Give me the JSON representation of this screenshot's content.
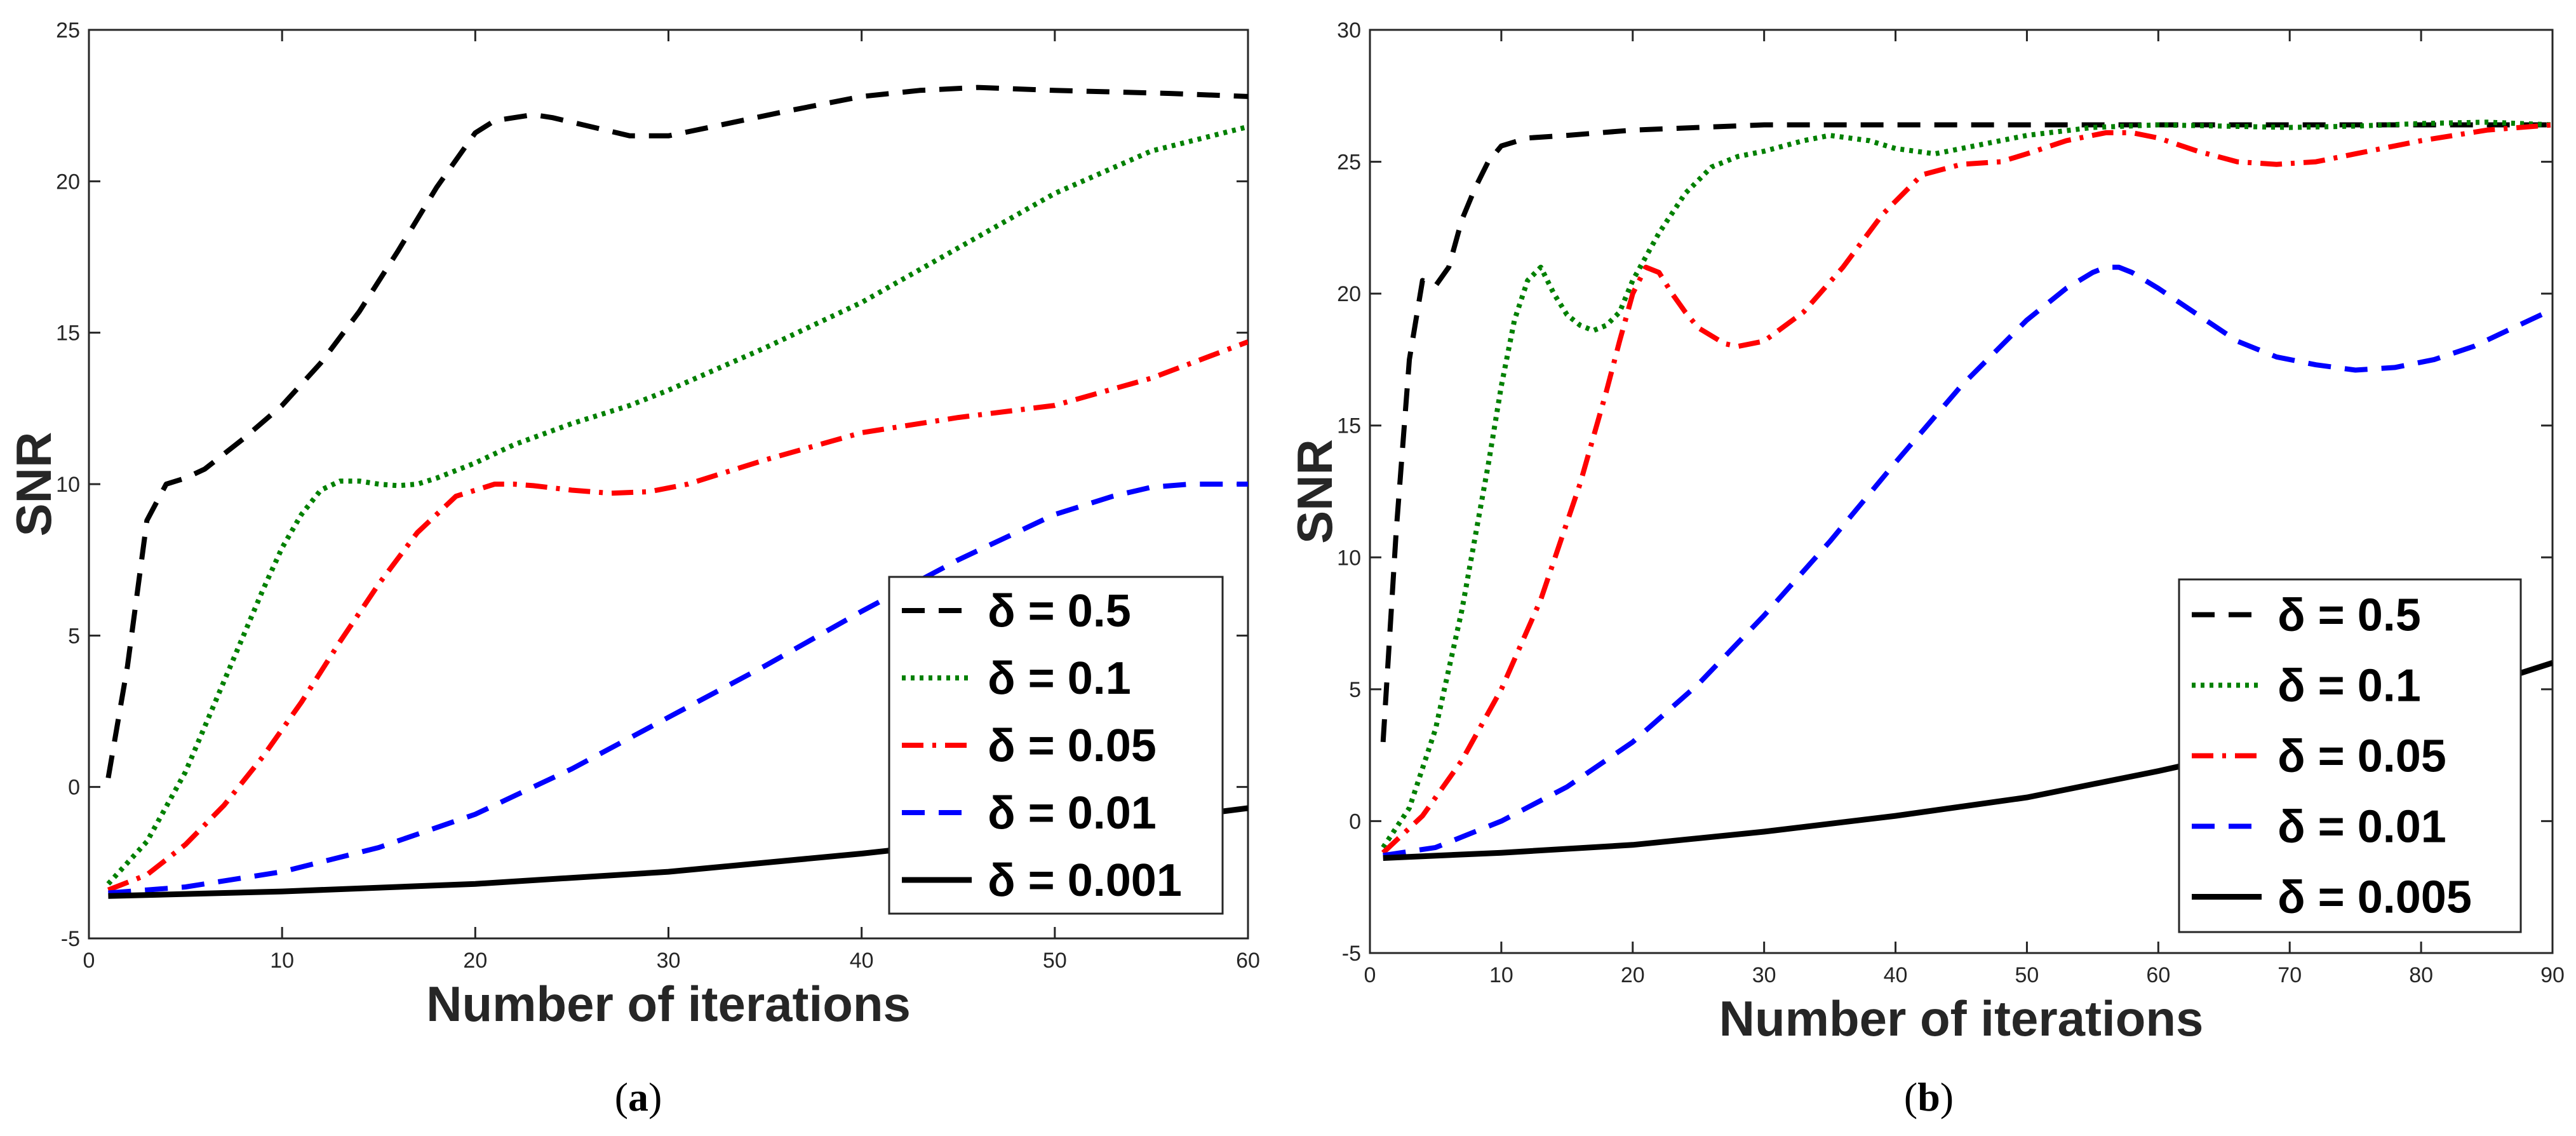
{
  "figure": {
    "captions": [
      {
        "open": "(",
        "label": "a",
        "close": ")"
      },
      {
        "open": "(",
        "label": "b",
        "close": ")"
      }
    ]
  },
  "chart_data": [
    {
      "type": "line",
      "panel": "a",
      "title": "",
      "xlabel": "Number of iterations",
      "ylabel": "SNR",
      "xlim": [
        0,
        60
      ],
      "ylim": [
        -5,
        25
      ],
      "xticks": [
        "0",
        "10",
        "20",
        "30",
        "40",
        "50",
        "60"
      ],
      "yticks": [
        "-5",
        "0",
        "5",
        "10",
        "15",
        "20",
        "25"
      ],
      "grid": false,
      "legend_position": "bottom-right",
      "series": [
        {
          "name": "δ = 0.5",
          "color": "#000000",
          "style": "dashed",
          "x": [
            1,
            2,
            3,
            4,
            5,
            6,
            8,
            10,
            12,
            14,
            16,
            18,
            20,
            21,
            22,
            23,
            24,
            26,
            28,
            30,
            33,
            36,
            40,
            43,
            46,
            50,
            53,
            56,
            60
          ],
          "y": [
            0.3,
            4.0,
            8.8,
            10.0,
            10.2,
            10.5,
            11.5,
            12.6,
            14.0,
            15.7,
            17.7,
            19.8,
            21.6,
            22.0,
            22.1,
            22.2,
            22.1,
            21.8,
            21.5,
            21.5,
            21.9,
            22.3,
            22.8,
            23.0,
            23.1,
            23.0,
            22.95,
            22.9,
            22.8
          ]
        },
        {
          "name": "δ = 0.1",
          "color": "#008000",
          "style": "dotted",
          "x": [
            1,
            3,
            5,
            7,
            9,
            10,
            11,
            12,
            13,
            14,
            15,
            16,
            17,
            18,
            20,
            22,
            25,
            28,
            30,
            35,
            40,
            45,
            50,
            55,
            60
          ],
          "y": [
            -3.2,
            -1.8,
            0.5,
            3.5,
            6.5,
            7.9,
            9.0,
            9.8,
            10.1,
            10.1,
            10.0,
            9.95,
            10.0,
            10.2,
            10.7,
            11.3,
            12.0,
            12.6,
            13.1,
            14.5,
            16.0,
            17.8,
            19.6,
            21.0,
            21.8
          ]
        },
        {
          "name": "δ = 0.05",
          "color": "#ff0000",
          "style": "dashdot",
          "x": [
            1,
            3,
            5,
            7,
            9,
            11,
            13,
            15,
            17,
            19,
            21,
            22,
            23,
            25,
            27,
            29,
            31,
            35,
            40,
            45,
            50,
            55,
            60
          ],
          "y": [
            -3.4,
            -2.9,
            -1.9,
            -0.6,
            1.0,
            2.8,
            4.8,
            6.7,
            8.4,
            9.6,
            10.0,
            10.0,
            9.95,
            9.8,
            9.7,
            9.75,
            10.0,
            10.8,
            11.7,
            12.2,
            12.6,
            13.5,
            14.7
          ]
        },
        {
          "name": "δ = 0.01",
          "color": "#0000ff",
          "style": "dashed",
          "x": [
            1,
            5,
            10,
            15,
            20,
            25,
            30,
            35,
            40,
            45,
            50,
            53,
            55,
            57,
            58,
            59,
            60
          ],
          "y": [
            -3.5,
            -3.3,
            -2.8,
            -2.0,
            -0.9,
            0.6,
            2.3,
            4.0,
            5.8,
            7.5,
            9.0,
            9.6,
            9.9,
            10.0,
            10.0,
            10.0,
            10.0
          ]
        },
        {
          "name": "δ = 0.001",
          "color": "#000000",
          "style": "solid",
          "x": [
            1,
            10,
            20,
            30,
            40,
            50,
            60
          ],
          "y": [
            -3.6,
            -3.45,
            -3.2,
            -2.8,
            -2.2,
            -1.5,
            -0.7
          ]
        }
      ]
    },
    {
      "type": "line",
      "panel": "b",
      "title": "",
      "xlabel": "Number of iterations",
      "ylabel": "SNR",
      "xlim": [
        0,
        90
      ],
      "ylim": [
        -5,
        30
      ],
      "xticks": [
        "0",
        "10",
        "20",
        "30",
        "40",
        "50",
        "60",
        "70",
        "80",
        "90"
      ],
      "yticks": [
        "-5",
        "0",
        "5",
        "10",
        "15",
        "20",
        "25",
        "30"
      ],
      "grid": false,
      "legend_position": "bottom-right",
      "series": [
        {
          "name": "δ = 0.5",
          "color": "#000000",
          "style": "dashed",
          "x": [
            1,
            2,
            3,
            4,
            5,
            6,
            7,
            8,
            9,
            10,
            12,
            15,
            20,
            25,
            30,
            40,
            50,
            60,
            70,
            80,
            90
          ],
          "y": [
            3.0,
            11.0,
            17.5,
            20.5,
            20.3,
            21.0,
            22.8,
            24.0,
            25.0,
            25.6,
            25.9,
            26.0,
            26.2,
            26.3,
            26.4,
            26.4,
            26.4,
            26.4,
            26.4,
            26.4,
            26.4
          ]
        },
        {
          "name": "δ = 0.1",
          "color": "#008000",
          "style": "dotted",
          "x": [
            1,
            3,
            5,
            7,
            9,
            10,
            11,
            12,
            13,
            14,
            15,
            16,
            17,
            18,
            19,
            20,
            22,
            24,
            26,
            28,
            30,
            33,
            35,
            38,
            40,
            43,
            46,
            50,
            55,
            60,
            65,
            70,
            75,
            80,
            85,
            90
          ],
          "y": [
            -1.0,
            0.5,
            3.5,
            8.0,
            13.5,
            16.5,
            19.0,
            20.5,
            21.0,
            20.0,
            19.2,
            18.8,
            18.6,
            18.8,
            19.3,
            20.5,
            22.3,
            23.8,
            24.8,
            25.2,
            25.4,
            25.8,
            26.0,
            25.8,
            25.5,
            25.3,
            25.6,
            26.0,
            26.3,
            26.4,
            26.35,
            26.3,
            26.35,
            26.45,
            26.5,
            26.4
          ]
        },
        {
          "name": "δ = 0.05",
          "color": "#ff0000",
          "style": "dashdot",
          "x": [
            1,
            4,
            7,
            10,
            13,
            16,
            18,
            19,
            20,
            21,
            22,
            23,
            24,
            25,
            27,
            28,
            30,
            33,
            36,
            39,
            42,
            45,
            48,
            50,
            53,
            56,
            58,
            60,
            63,
            66,
            69,
            72,
            75,
            80,
            85,
            90
          ],
          "y": [
            -1.2,
            0.2,
            2.3,
            5.0,
            8.4,
            12.8,
            16.3,
            18.2,
            20.0,
            21.0,
            20.8,
            20.0,
            19.3,
            18.7,
            18.1,
            18.0,
            18.2,
            19.3,
            21.0,
            23.0,
            24.5,
            24.9,
            25.0,
            25.3,
            25.8,
            26.1,
            26.1,
            25.9,
            25.4,
            25.0,
            24.9,
            25.0,
            25.3,
            25.8,
            26.2,
            26.4
          ]
        },
        {
          "name": "δ = 0.01",
          "color": "#0000ff",
          "style": "dashed",
          "x": [
            1,
            5,
            10,
            15,
            20,
            25,
            30,
            35,
            40,
            45,
            50,
            53,
            55,
            56,
            57,
            58,
            60,
            63,
            66,
            69,
            72,
            75,
            78,
            81,
            84,
            87,
            90
          ],
          "y": [
            -1.3,
            -1.0,
            0.0,
            1.3,
            3.0,
            5.2,
            7.8,
            10.6,
            13.6,
            16.5,
            19.0,
            20.2,
            20.8,
            21.0,
            21.0,
            20.8,
            20.2,
            19.2,
            18.2,
            17.6,
            17.3,
            17.1,
            17.2,
            17.5,
            18.0,
            18.7,
            19.4
          ]
        },
        {
          "name": "δ = 0.005",
          "color": "#000000",
          "style": "solid",
          "x": [
            1,
            10,
            20,
            30,
            40,
            50,
            60,
            70,
            80,
            90
          ],
          "y": [
            -1.4,
            -1.2,
            -0.9,
            -0.4,
            0.2,
            0.9,
            1.9,
            3.0,
            4.4,
            6.0
          ]
        }
      ]
    }
  ]
}
